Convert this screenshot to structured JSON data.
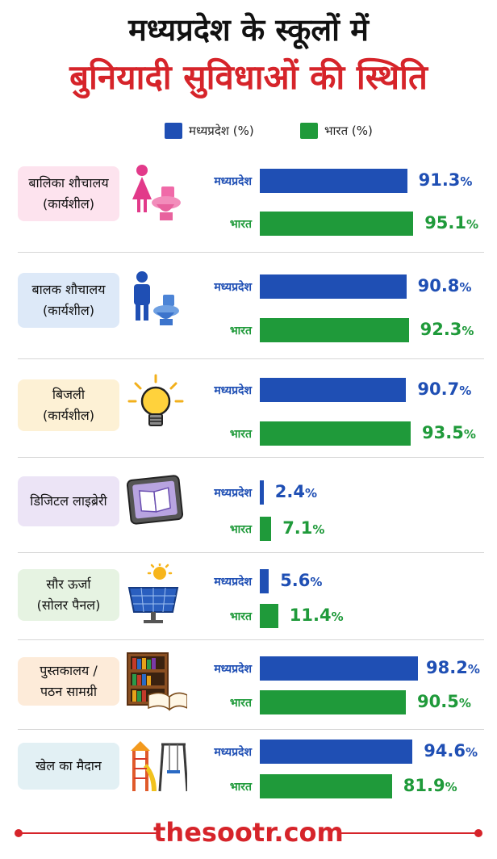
{
  "header": {
    "title_line1": "मध्यप्रदेश के स्कूलों में",
    "title_line2": "बुनियादी सुविधाओं की स्थिति",
    "title_line1_color": "#111111",
    "title_line2_color": "#d6242a"
  },
  "colors": {
    "mp": "#1f4fb4",
    "india": "#1f9a3a"
  },
  "chart_data": {
    "type": "bar",
    "orientation": "horizontal",
    "title": "मध्यप्रदेश के स्कूलों में बुनियादी सुविधाओं की स्थिति",
    "legend_position": "top",
    "series": [
      {
        "name": "मध्यप्रदेश (%)",
        "values": [
          91.3,
          90.8,
          90.7,
          2.4,
          5.6,
          98.2,
          94.6
        ]
      },
      {
        "name": "भारत (%)",
        "values": [
          95.1,
          92.3,
          93.5,
          7.1,
          11.4,
          90.5,
          81.9
        ]
      }
    ],
    "categories": [
      {
        "line1": "बालिका शौचालय",
        "line2": "(कार्यशील)",
        "bg": "#fde3ee",
        "icon": "girls-toilet-icon"
      },
      {
        "line1": "बालक शौचालय",
        "line2": "(कार्यशील)",
        "bg": "#dde9f8",
        "icon": "boys-toilet-icon"
      },
      {
        "line1": "बिजली",
        "line2": "(कार्यशील)",
        "bg": "#fdf1d5",
        "icon": "lightbulb-icon"
      },
      {
        "line1": "डिजिटल लाइब्रेरी",
        "line2": "",
        "bg": "#ece4f6",
        "icon": "tablet-book-icon"
      },
      {
        "line1": "सौर ऊर्जा",
        "line2": "(सोलर पैनल)",
        "bg": "#e6f3e2",
        "icon": "solar-panel-icon"
      },
      {
        "line1": "पुस्तकालय /",
        "line2": "पठन सामग्री",
        "bg": "#fdebd9",
        "icon": "bookshelf-icon"
      },
      {
        "line1": "खेल का मैदान",
        "line2": "",
        "bg": "#e2f0f4",
        "icon": "playground-icon"
      }
    ],
    "bar_labels": {
      "mp": "मध्यप्रदेश",
      "india": "भारत"
    },
    "xlim": [
      0,
      100
    ],
    "grid": false
  },
  "footer": {
    "site": "thesootr.com"
  }
}
